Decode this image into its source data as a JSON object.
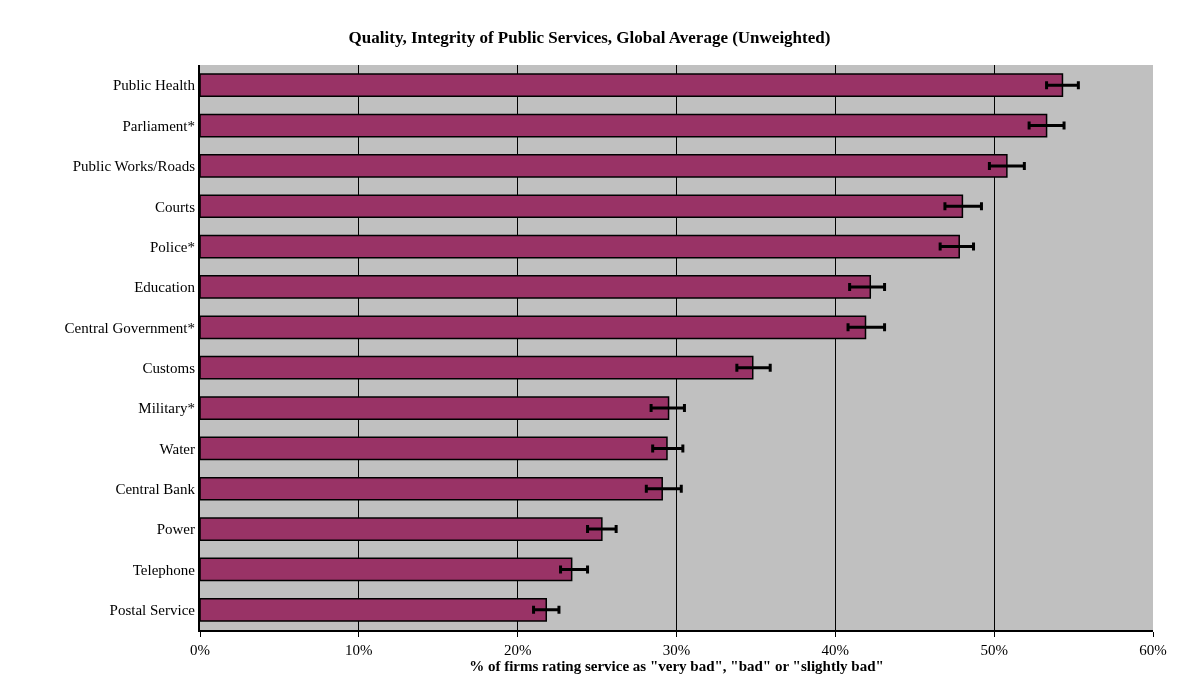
{
  "chart_data": {
    "type": "bar",
    "orientation": "horizontal",
    "title": "Quality, Integrity of Public Services, Global Average (Unweighted)",
    "xlabel": "% of firms rating service as \"very bad\", \"bad\" or \"slightly bad\"",
    "categories": [
      "Public Health",
      "Parliament*",
      "Public Works/Roads",
      "Courts",
      "Police*",
      "Education",
      "Central Government*",
      "Customs",
      "Military*",
      "Water",
      "Central Bank",
      "Power",
      "Telephone",
      "Postal Service"
    ],
    "values": [
      54.3,
      53.3,
      50.8,
      48.0,
      47.8,
      42.2,
      41.9,
      34.8,
      29.5,
      29.4,
      29.1,
      25.3,
      23.4,
      21.8
    ],
    "errors": [
      [
        53.3,
        55.3
      ],
      [
        52.2,
        54.4
      ],
      [
        49.7,
        51.9
      ],
      [
        46.9,
        49.2
      ],
      [
        46.6,
        48.7
      ],
      [
        40.9,
        43.1
      ],
      [
        40.8,
        43.1
      ],
      [
        33.8,
        35.9
      ],
      [
        28.4,
        30.5
      ],
      [
        28.5,
        30.4
      ],
      [
        28.1,
        30.3
      ],
      [
        24.4,
        26.2
      ],
      [
        22.7,
        24.4
      ],
      [
        21.0,
        22.6
      ]
    ],
    "color": "#993366",
    "xlim": [
      0,
      60
    ],
    "xticks": [
      {
        "value": 0,
        "label": "0%"
      },
      {
        "value": 10,
        "label": "10%"
      },
      {
        "value": 20,
        "label": "20%"
      },
      {
        "value": 30,
        "label": "30%"
      },
      {
        "value": 40,
        "label": "40%"
      },
      {
        "value": 50,
        "label": "50%"
      },
      {
        "value": 60,
        "label": "60%"
      }
    ],
    "grid": "x",
    "legend": false
  }
}
